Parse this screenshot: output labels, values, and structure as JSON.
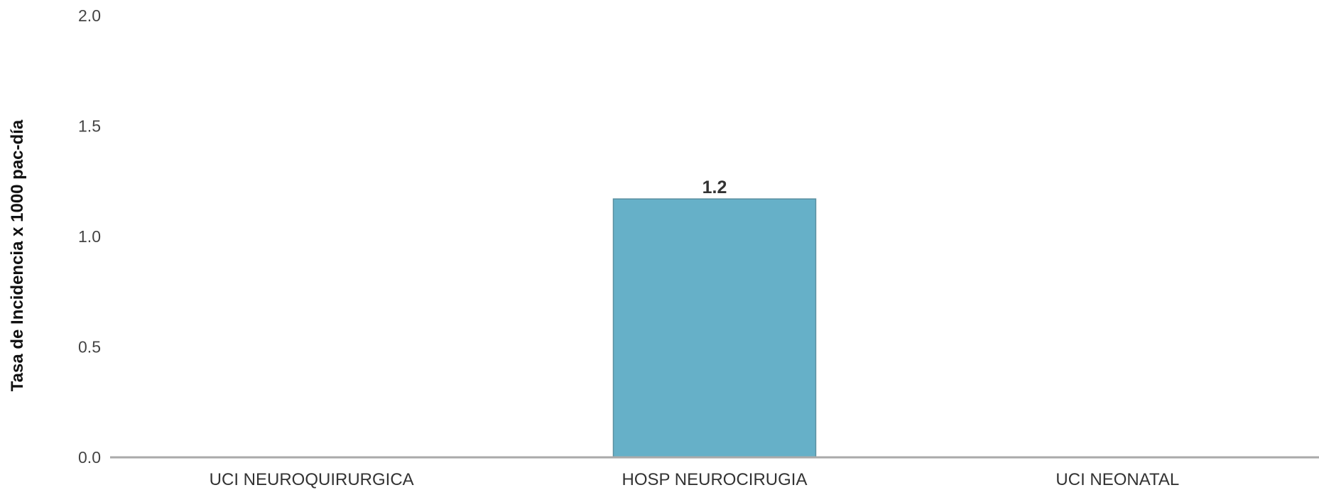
{
  "chart_data": {
    "type": "bar",
    "categories": [
      "UCI NEUROQUIRURGICA",
      "HOSP NEUROCIRUGIA",
      "UCI NEONATAL"
    ],
    "values": [
      0,
      1.17,
      0
    ],
    "data_labels": [
      "",
      "1.2",
      ""
    ],
    "ylabel": "Tasa de Incidencia x 1000 pac-día",
    "ylim": [
      0,
      2
    ],
    "yticks": [
      "0.0",
      "0.5",
      "1.0",
      "1.5",
      "2.0"
    ],
    "grid": false,
    "bar_color": "#66b0c8",
    "bar_edge_color": "#5a8fa0",
    "axis_color": "#aaaaaa"
  }
}
